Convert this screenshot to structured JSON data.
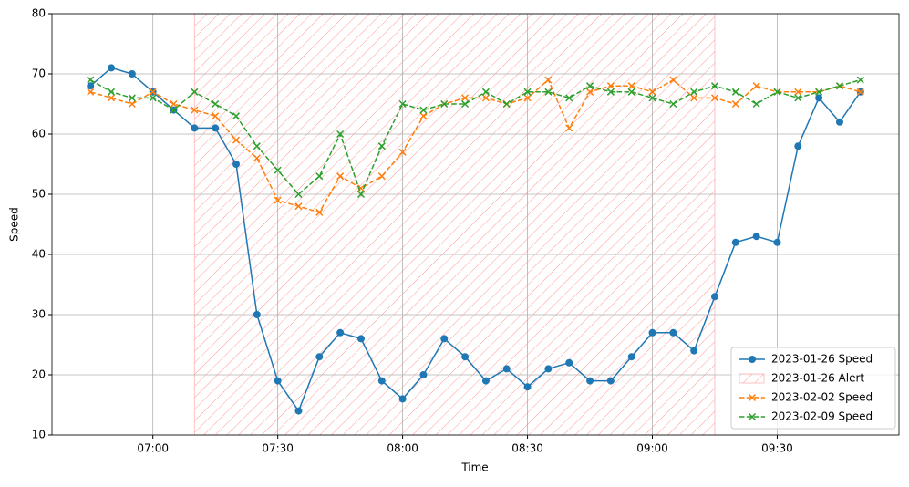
{
  "chart_data": {
    "type": "line",
    "xlabel": "Time",
    "ylabel": "Speed",
    "x": [
      "06:45",
      "06:50",
      "06:55",
      "07:00",
      "07:05",
      "07:10",
      "07:15",
      "07:20",
      "07:25",
      "07:30",
      "07:35",
      "07:40",
      "07:45",
      "07:50",
      "07:55",
      "08:00",
      "08:05",
      "08:10",
      "08:15",
      "08:20",
      "08:25",
      "08:30",
      "08:35",
      "08:40",
      "08:45",
      "08:50",
      "08:55",
      "09:00",
      "09:05",
      "09:10",
      "09:15",
      "09:20",
      "09:25",
      "09:30",
      "09:35",
      "09:40",
      "09:45",
      "09:50"
    ],
    "series": [
      {
        "name": "2023-01-26 Speed",
        "color": "#1f77b4",
        "linestyle": "solid",
        "marker": "circle",
        "values": [
          68,
          71,
          70,
          67,
          64,
          61,
          61,
          55,
          30,
          19,
          14,
          23,
          27,
          26,
          19,
          16,
          20,
          26,
          23,
          19,
          21,
          18,
          21,
          22,
          19,
          19,
          23,
          27,
          27,
          24,
          33,
          42,
          43,
          42,
          58,
          66,
          62,
          67
        ]
      },
      {
        "name": "2023-02-02 Speed",
        "color": "#ff7f0e",
        "linestyle": "dashed",
        "marker": "x",
        "values": [
          67,
          66,
          65,
          67,
          65,
          64,
          63,
          59,
          56,
          49,
          48,
          47,
          53,
          51,
          53,
          57,
          63,
          65,
          66,
          66,
          65,
          66,
          69,
          61,
          67,
          68,
          68,
          67,
          69,
          66,
          66,
          65,
          68,
          67,
          67,
          67,
          68,
          67
        ]
      },
      {
        "name": "2023-02-09 Speed",
        "color": "#2ca02c",
        "linestyle": "dashed",
        "marker": "x",
        "values": [
          69,
          67,
          66,
          66,
          64,
          67,
          65,
          63,
          58,
          54,
          50,
          53,
          60,
          50,
          58,
          65,
          64,
          65,
          65,
          67,
          65,
          67,
          67,
          66,
          68,
          67,
          67,
          66,
          65,
          67,
          68,
          67,
          65,
          67,
          66,
          67,
          68,
          69
        ]
      }
    ],
    "span": {
      "name": "2023-01-26 Alert",
      "start": "07:10",
      "end": "09:15",
      "color": "#ff9999"
    },
    "xlim": [
      "06:35:45",
      "09:59:15"
    ],
    "xticks": [
      "07:00",
      "07:30",
      "08:00",
      "08:30",
      "09:00",
      "09:30"
    ],
    "ylim": [
      10,
      80
    ],
    "yticks": [
      10,
      20,
      30,
      40,
      50,
      60,
      70,
      80
    ],
    "grid": true,
    "legend": "lower right"
  }
}
